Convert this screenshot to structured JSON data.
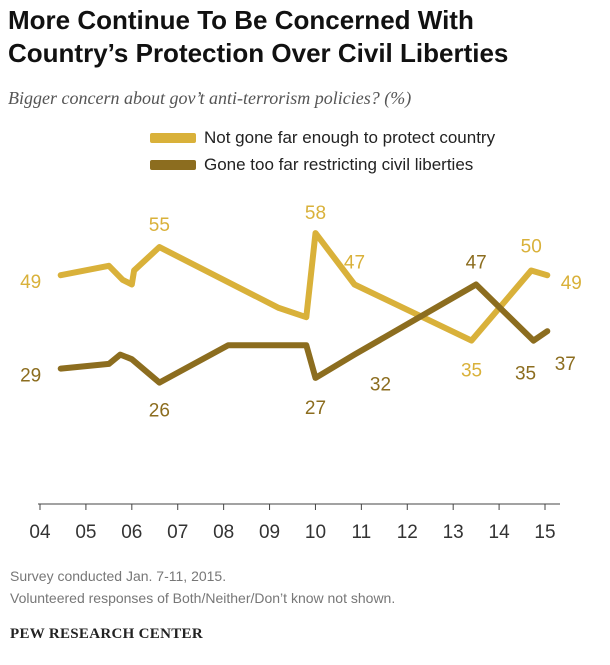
{
  "title_line1": "More Continue To Be Concerned With",
  "title_line2": "Country’s Protection Over Civil Liberties",
  "subtitle": "Bigger concern about gov’t anti-terrorism policies? (%)",
  "colors": {
    "series1": "#D9B13A",
    "series2": "#8C6D1F",
    "axis": "#444444"
  },
  "chart_data": {
    "type": "line",
    "title": "More Continue To Be Concerned With Country’s Protection Over Civil Liberties",
    "subtitle": "Bigger concern about gov’t anti-terrorism policies? (%)",
    "xlabel": "",
    "ylabel": "",
    "x_ticks": [
      "04",
      "05",
      "06",
      "07",
      "08",
      "09",
      "10",
      "11",
      "12",
      "13",
      "14",
      "15"
    ],
    "xlim": [
      2004,
      2015
    ],
    "ylim": [
      0,
      75
    ],
    "grid": false,
    "legend_position": "top",
    "series": [
      {
        "name": "Not gone far enough to protect country",
        "color": "#D9B13A",
        "points": [
          {
            "x": 2004.45,
            "y": 49
          },
          {
            "x": 2005.5,
            "y": 51
          },
          {
            "x": 2005.8,
            "y": 48
          },
          {
            "x": 2006.0,
            "y": 47
          },
          {
            "x": 2006.05,
            "y": 50
          },
          {
            "x": 2006.6,
            "y": 55
          },
          {
            "x": 2009.2,
            "y": 42
          },
          {
            "x": 2009.8,
            "y": 40
          },
          {
            "x": 2010.0,
            "y": 58
          },
          {
            "x": 2010.85,
            "y": 47
          },
          {
            "x": 2013.4,
            "y": 35
          },
          {
            "x": 2014.7,
            "y": 50
          },
          {
            "x": 2015.05,
            "y": 49
          }
        ],
        "labels": [
          {
            "x": 2004.45,
            "y": 49,
            "text": "49"
          },
          {
            "x": 2006.6,
            "y": 55,
            "text": "55"
          },
          {
            "x": 2010.0,
            "y": 58,
            "text": "58"
          },
          {
            "x": 2010.85,
            "y": 47,
            "text": "47"
          },
          {
            "x": 2013.4,
            "y": 35,
            "text": "35"
          },
          {
            "x": 2014.7,
            "y": 50,
            "text": "50"
          },
          {
            "x": 2015.05,
            "y": 49,
            "text": "49"
          }
        ]
      },
      {
        "name": "Gone too far restricting civil liberties",
        "color": "#8C6D1F",
        "points": [
          {
            "x": 2004.45,
            "y": 29
          },
          {
            "x": 2005.5,
            "y": 30
          },
          {
            "x": 2005.75,
            "y": 32
          },
          {
            "x": 2006.0,
            "y": 31
          },
          {
            "x": 2006.6,
            "y": 26
          },
          {
            "x": 2008.1,
            "y": 34
          },
          {
            "x": 2009.8,
            "y": 34
          },
          {
            "x": 2010.0,
            "y": 27
          },
          {
            "x": 2010.85,
            "y": 32
          },
          {
            "x": 2013.5,
            "y": 47
          },
          {
            "x": 2014.75,
            "y": 35
          },
          {
            "x": 2015.05,
            "y": 37
          }
        ],
        "labels": [
          {
            "x": 2004.45,
            "y": 29,
            "text": "29"
          },
          {
            "x": 2006.6,
            "y": 26,
            "text": "26"
          },
          {
            "x": 2010.0,
            "y": 27,
            "text": "27"
          },
          {
            "x": 2010.85,
            "y": 32,
            "text": "32"
          },
          {
            "x": 2013.5,
            "y": 47,
            "text": "47"
          },
          {
            "x": 2014.75,
            "y": 35,
            "text": "35"
          },
          {
            "x": 2015.05,
            "y": 37,
            "text": "37"
          }
        ]
      }
    ]
  },
  "footnote1": "Survey conducted Jan. 7-11, 2015.",
  "footnote2": "Volunteered responses of Both/Neither/Don’t know not shown.",
  "source": "PEW RESEARCH CENTER"
}
